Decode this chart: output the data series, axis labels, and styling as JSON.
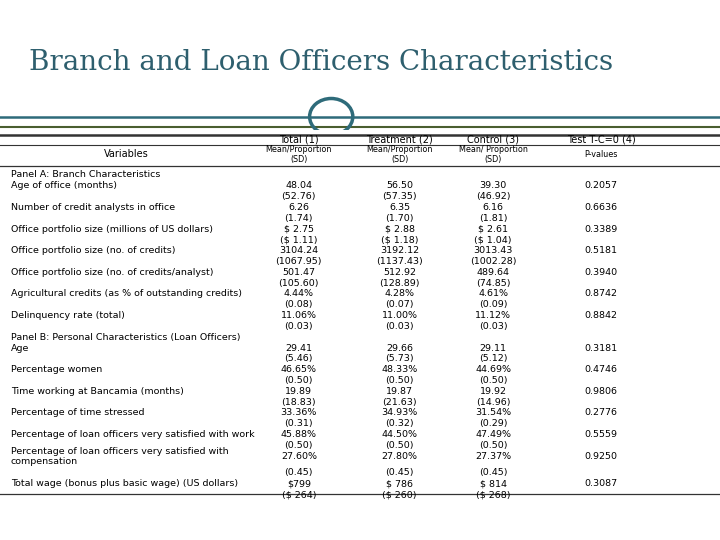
{
  "title": "Branch and Loan Officers Characteristics",
  "title_color": "#2E5F6E",
  "bg_color": "#D4CDB8",
  "top_bg": "#FFFFFF",
  "bottom_bar_color": "#4A5E2F",
  "line_color_teal": "#2E6B7A",
  "line_color_dark": "#333333",
  "col_headers": [
    "Total (1)",
    "Treatment (2)",
    "Control (3)",
    "Test T-C=0 (4)"
  ],
  "col_subheaders": [
    "Mean/Proportion\n(SD)",
    "Mean/Proportion\n(SD)",
    "Mean/ Proportion\n(SD)",
    "P-values"
  ],
  "rows": [
    {
      "label": "Panel A: Branch Characteristics",
      "vals": [
        "",
        "",
        "",
        ""
      ],
      "panel": true
    },
    {
      "label": "Age of office (months)",
      "vals": [
        "48.04",
        "56.50",
        "39.30",
        "0.2057"
      ],
      "main": true
    },
    {
      "label": "",
      "vals": [
        "(52.76)",
        "(57.35)",
        "(46.92)",
        ""
      ],
      "sub": true
    },
    {
      "label": "Number of credit analysts in office",
      "vals": [
        "6.26",
        "6.35",
        "6.16",
        "0.6636"
      ],
      "main": true
    },
    {
      "label": "",
      "vals": [
        "(1.74)",
        "(1.70)",
        "(1.81)",
        ""
      ],
      "sub": true
    },
    {
      "label": "Office portfolio size (millions of US dollars)",
      "vals": [
        "$ 2.75",
        "$ 2.88",
        "$ 2.61",
        "0.3389"
      ],
      "main": true
    },
    {
      "label": "",
      "vals": [
        "($ 1.11)",
        "($ 1.18)",
        "($ 1.04)",
        ""
      ],
      "sub": true
    },
    {
      "label": "Office portfolio size (no. of credits)",
      "vals": [
        "3104.24",
        "3192.12",
        "3013.43",
        "0.5181"
      ],
      "main": true
    },
    {
      "label": "",
      "vals": [
        "(1067.95)",
        "(1137.43)",
        "(1002.28)",
        ""
      ],
      "sub": true
    },
    {
      "label": "Office portfolio size (no. of credits/analyst)",
      "vals": [
        "501.47",
        "512.92",
        "489.64",
        "0.3940"
      ],
      "main": true
    },
    {
      "label": "",
      "vals": [
        "(105.60)",
        "(128.89)",
        "(74.85)",
        ""
      ],
      "sub": true
    },
    {
      "label": "Agricultural credits (as % of outstanding credits)",
      "vals": [
        "4.44%",
        "4.28%",
        "4.61%",
        "0.8742"
      ],
      "main": true
    },
    {
      "label": "",
      "vals": [
        "(0.08)",
        "(0.07)",
        "(0.09)",
        ""
      ],
      "sub": true
    },
    {
      "label": "Delinquency rate (total)",
      "vals": [
        "11.06%",
        "11.00%",
        "11.12%",
        "0.8842"
      ],
      "main": true
    },
    {
      "label": "",
      "vals": [
        "(0.03)",
        "(0.03)",
        "(0.03)",
        ""
      ],
      "sub": true
    },
    {
      "label": "Panel B: Personal Characteristics (Loan Officers)",
      "vals": [
        "",
        "",
        "",
        ""
      ],
      "panel": true
    },
    {
      "label": "Age",
      "vals": [
        "29.41",
        "29.66",
        "29.11",
        "0.3181"
      ],
      "main": true
    },
    {
      "label": "",
      "vals": [
        "(5.46)",
        "(5.73)",
        "(5.12)",
        ""
      ],
      "sub": true
    },
    {
      "label": "Percentage women",
      "vals": [
        "46.65%",
        "48.33%",
        "44.69%",
        "0.4746"
      ],
      "main": true
    },
    {
      "label": "",
      "vals": [
        "(0.50)",
        "(0.50)",
        "(0.50)",
        ""
      ],
      "sub": true
    },
    {
      "label": "Time working at Bancamia (months)",
      "vals": [
        "19.89",
        "19.87",
        "19.92",
        "0.9806"
      ],
      "main": true
    },
    {
      "label": "",
      "vals": [
        "(18.83)",
        "(21.63)",
        "(14.96)",
        ""
      ],
      "sub": true
    },
    {
      "label": "Percentage of time stressed",
      "vals": [
        "33.36%",
        "34.93%",
        "31.54%",
        "0.2776"
      ],
      "main": true
    },
    {
      "label": "",
      "vals": [
        "(0.31)",
        "(0.32)",
        "(0.29)",
        ""
      ],
      "sub": true
    },
    {
      "label": "Percentage of loan officers very satisfied with work",
      "vals": [
        "45.88%",
        "44.50%",
        "47.49%",
        "0.5559"
      ],
      "main": true
    },
    {
      "label": "",
      "vals": [
        "(0.50)",
        "(0.50)",
        "(0.50)",
        ""
      ],
      "sub": true
    },
    {
      "label": "Percentage of loan officers very satisfied with\ncompensation",
      "vals": [
        "27.60%",
        "27.80%",
        "27.37%",
        "0.9250"
      ],
      "main": true,
      "twoline": true
    },
    {
      "label": "",
      "vals": [
        "(0.45)",
        "(0.45)",
        "(0.45)",
        ""
      ],
      "sub": true
    },
    {
      "label": "Total wage (bonus plus basic wage) (US dollars)",
      "vals": [
        "$799",
        "$ 786",
        "$ 814",
        "0.3087"
      ],
      "main": true
    },
    {
      "label": "",
      "vals": [
        "($ 264)",
        "($ 260)",
        "($ 268)",
        ""
      ],
      "sub": true
    }
  ],
  "title_font_size": 20,
  "header_font_size": 7.5,
  "data_font_size": 6.8,
  "label_font_size": 6.8
}
